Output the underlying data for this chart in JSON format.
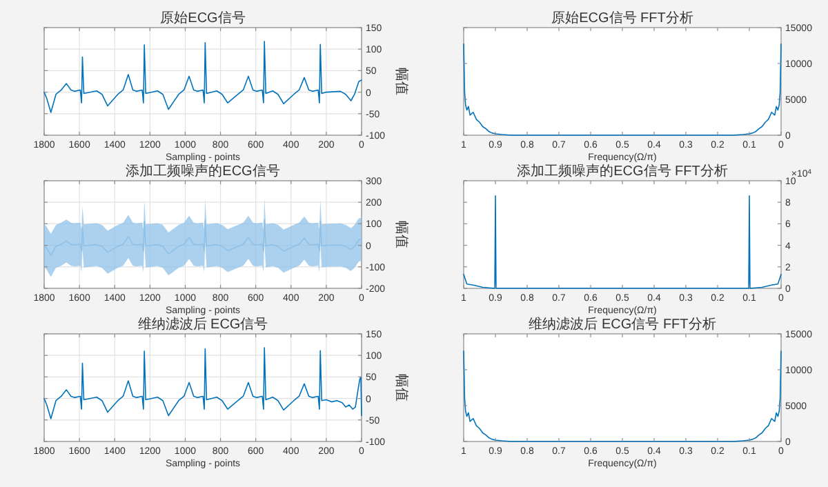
{
  "chart_data": [
    {
      "type": "line",
      "title": "原始ECG信号",
      "xlabel": "Sampling - points",
      "ylabel": "幅值",
      "xlim": [
        1800,
        0
      ],
      "xticks": [
        0,
        200,
        400,
        600,
        800,
        1000,
        1200,
        1400,
        1600,
        1800
      ],
      "ylim": [
        -100,
        150
      ],
      "yticks": [
        -100,
        -50,
        0,
        50,
        100,
        150
      ],
      "grid": true,
      "series": [
        {
          "color": "#0072bd",
          "x": [
            0,
            15,
            40,
            60,
            90,
            120,
            200,
            226,
            234,
            239,
            246,
            279,
            299,
            325,
            354,
            384,
            442,
            474,
            504,
            543,
            551,
            556,
            563,
            596,
            616,
            642,
            671,
            701,
            759,
            791,
            821,
            879,
            887,
            892,
            899,
            932,
            952,
            978,
            1007,
            1037,
            1095,
            1127,
            1157,
            1224,
            1232,
            1237,
            1244,
            1277,
            1297,
            1323,
            1352,
            1382,
            1440,
            1472,
            1502,
            1575,
            1583,
            1588,
            1595,
            1628,
            1648,
            1674,
            1703,
            1733,
            1762,
            1785,
            1800
          ],
          "values": [
            28,
            25,
            -5,
            -20,
            -5,
            2,
            0,
            -3,
            111,
            -25,
            5,
            2,
            5,
            34,
            5,
            -5,
            -27,
            -5,
            3,
            -3,
            118,
            -25,
            5,
            2,
            5,
            37,
            5,
            -5,
            -25,
            -5,
            3,
            -3,
            115,
            -25,
            5,
            2,
            5,
            37,
            5,
            -5,
            -40,
            -5,
            3,
            -3,
            110,
            -25,
            5,
            2,
            5,
            41,
            5,
            -5,
            -32,
            -5,
            3,
            -3,
            82,
            -25,
            5,
            2,
            5,
            20,
            5,
            -5,
            -47,
            -15,
            0
          ]
        }
      ]
    },
    {
      "type": "line",
      "title": "原始ECG信号 FFT分析",
      "xlabel": "Frequency(Ω/π)",
      "xlim": [
        1,
        0
      ],
      "xticks": [
        0,
        0.1,
        0.2,
        0.3,
        0.4,
        0.5,
        0.6,
        0.7,
        0.8,
        0.9,
        1
      ],
      "ylim": [
        0,
        15000
      ],
      "yticks": [
        0,
        5000,
        10000,
        15000
      ],
      "series": [
        {
          "color": "#0072bd",
          "x": [
            0,
            0.003,
            0.006,
            0.01,
            0.015,
            0.02,
            0.03,
            0.04,
            0.05,
            0.06,
            0.07,
            0.08,
            0.09,
            0.1,
            0.12,
            0.15,
            0.5,
            0.85,
            0.88,
            0.9,
            0.91,
            0.92,
            0.93,
            0.94,
            0.95,
            0.96,
            0.97,
            0.98,
            0.985,
            0.99,
            0.994,
            0.997,
            1
          ],
          "values": [
            12700,
            6000,
            4200,
            3500,
            4000,
            2800,
            3200,
            2200,
            1800,
            1200,
            900,
            500,
            300,
            200,
            100,
            0,
            0,
            0,
            100,
            200,
            300,
            500,
            900,
            1200,
            1800,
            2200,
            3200,
            2800,
            4000,
            3500,
            4200,
            6000,
            12700
          ]
        }
      ]
    },
    {
      "type": "line",
      "title": "添加工频噪声的ECG信号",
      "xlabel": "Sampling - points",
      "ylabel": "幅值",
      "xlim": [
        1800,
        0
      ],
      "xticks": [
        0,
        200,
        400,
        600,
        800,
        1000,
        1200,
        1400,
        1600,
        1800
      ],
      "ylim": [
        -200,
        300
      ],
      "yticks": [
        -200,
        -100,
        0,
        100,
        200,
        300
      ],
      "grid": true,
      "series": [
        {
          "color": "#8fc1e8",
          "x": [
            0,
            15,
            40,
            60,
            90,
            120,
            200,
            226,
            234,
            239,
            246,
            279,
            299,
            325,
            354,
            384,
            442,
            474,
            504,
            543,
            551,
            556,
            563,
            596,
            616,
            642,
            671,
            701,
            759,
            791,
            821,
            879,
            887,
            892,
            899,
            932,
            952,
            978,
            1007,
            1037,
            1095,
            1127,
            1157,
            1224,
            1232,
            1237,
            1244,
            1277,
            1297,
            1323,
            1352,
            1382,
            1440,
            1472,
            1502,
            1575,
            1583,
            1588,
            1595,
            1628,
            1648,
            1674,
            1703,
            1733,
            1762,
            1785,
            1800
          ],
          "values": [
            28,
            25,
            -5,
            -20,
            -5,
            2,
            0,
            -3,
            111,
            -25,
            5,
            2,
            5,
            34,
            5,
            -5,
            -27,
            -5,
            3,
            -3,
            118,
            -25,
            5,
            2,
            5,
            37,
            5,
            -5,
            -25,
            -5,
            3,
            -3,
            115,
            -25,
            5,
            2,
            5,
            37,
            5,
            -5,
            -40,
            -5,
            3,
            -3,
            110,
            -25,
            5,
            2,
            5,
            41,
            5,
            -5,
            -32,
            -5,
            3,
            -3,
            82,
            -25,
            5,
            2,
            5,
            20,
            5,
            -5,
            -47,
            -15,
            0
          ],
          "lower": [
            -72,
            -75,
            -105,
            -120,
            -105,
            -98,
            -100,
            -103,
            11,
            -125,
            -95,
            -98,
            -95,
            -66,
            -95,
            -105,
            -127,
            -105,
            -97,
            -103,
            18,
            -125,
            -95,
            -98,
            -95,
            -63,
            -95,
            -105,
            -125,
            -105,
            -97,
            -103,
            15,
            -125,
            -95,
            -98,
            -95,
            -63,
            -95,
            -105,
            -140,
            -105,
            -97,
            -103,
            10,
            -125,
            -95,
            -98,
            -95,
            -59,
            -95,
            -105,
            -132,
            -105,
            -97,
            -103,
            -18,
            -125,
            -95,
            -98,
            -95,
            -80,
            -95,
            -105,
            -147,
            -115,
            -100
          ],
          "upper": [
            128,
            125,
            95,
            80,
            95,
            102,
            100,
            97,
            211,
            75,
            105,
            102,
            105,
            134,
            105,
            95,
            73,
            95,
            103,
            97,
            218,
            75,
            105,
            102,
            105,
            137,
            105,
            95,
            75,
            95,
            103,
            97,
            215,
            75,
            105,
            102,
            105,
            137,
            105,
            95,
            60,
            95,
            103,
            97,
            210,
            75,
            105,
            102,
            105,
            141,
            105,
            95,
            68,
            95,
            103,
            97,
            182,
            75,
            105,
            102,
            105,
            120,
            105,
            95,
            53,
            85,
            100
          ]
        }
      ]
    },
    {
      "type": "line",
      "title": "添加工频噪声的ECG信号 FFT分析",
      "xlabel": "Frequency(Ω/π)",
      "xlim": [
        1,
        0
      ],
      "xticks": [
        0,
        0.1,
        0.2,
        0.3,
        0.4,
        0.5,
        0.6,
        0.7,
        0.8,
        0.9,
        1
      ],
      "ylim": [
        0,
        10
      ],
      "yticks": [
        0,
        2,
        4,
        6,
        8,
        10
      ],
      "annotations": [
        "×10$^{4}$"
      ],
      "series": [
        {
          "color": "#0072bd",
          "x": [
            0,
            0.01,
            0.03,
            0.06,
            0.098,
            0.1,
            0.102,
            0.2,
            0.5,
            0.8,
            0.898,
            0.9,
            0.902,
            0.94,
            0.97,
            0.99,
            1
          ],
          "values": [
            1.3,
            0.4,
            0.3,
            0.1,
            0,
            8.6,
            0,
            0,
            0,
            0,
            0,
            8.6,
            0,
            0.1,
            0.3,
            0.4,
            1.3
          ]
        }
      ]
    },
    {
      "type": "line",
      "title": "维纳滤波后 ECG信号",
      "xlabel": "Sampling - points",
      "ylabel": "幅值",
      "xlim": [
        1800,
        0
      ],
      "xticks": [
        0,
        200,
        400,
        600,
        800,
        1000,
        1200,
        1400,
        1600,
        1800
      ],
      "ylim": [
        -100,
        150
      ],
      "yticks": [
        -100,
        -50,
        0,
        50,
        100,
        150
      ],
      "grid": true,
      "series": [
        {
          "color": "#0072bd",
          "x": [
            0,
            4,
            10,
            20,
            35,
            50,
            70,
            90,
            110,
            140,
            170,
            200,
            226,
            234,
            239,
            246,
            279,
            299,
            325,
            354,
            384,
            442,
            474,
            504,
            543,
            551,
            556,
            563,
            596,
            616,
            642,
            671,
            701,
            759,
            791,
            821,
            879,
            887,
            892,
            899,
            932,
            952,
            978,
            1007,
            1037,
            1095,
            1127,
            1157,
            1224,
            1232,
            1237,
            1244,
            1277,
            1297,
            1323,
            1352,
            1382,
            1440,
            1472,
            1502,
            1575,
            1583,
            1588,
            1595,
            1628,
            1648,
            1674,
            1703,
            1733,
            1762,
            1785,
            1800
          ],
          "values": [
            -40,
            50,
            45,
            20,
            -20,
            -25,
            -15,
            -20,
            -10,
            -5,
            -8,
            -3,
            -5,
            111,
            -25,
            5,
            2,
            5,
            34,
            5,
            -5,
            -27,
            -5,
            3,
            -3,
            118,
            -25,
            5,
            2,
            5,
            37,
            5,
            -5,
            -25,
            -5,
            3,
            -3,
            115,
            -25,
            5,
            2,
            5,
            37,
            5,
            -5,
            -40,
            -5,
            3,
            -3,
            110,
            -25,
            5,
            2,
            5,
            41,
            5,
            -5,
            -32,
            -5,
            3,
            -3,
            82,
            -25,
            5,
            2,
            5,
            20,
            5,
            -5,
            -47,
            -15,
            0
          ]
        }
      ]
    },
    {
      "type": "line",
      "title": "维纳滤波后 ECG信号 FFT分析",
      "xlabel": "Frequency(Ω/π)",
      "xlim": [
        1,
        0
      ],
      "xticks": [
        0,
        0.1,
        0.2,
        0.3,
        0.4,
        0.5,
        0.6,
        0.7,
        0.8,
        0.9,
        1
      ],
      "ylim": [
        0,
        15000
      ],
      "yticks": [
        0,
        5000,
        10000,
        15000
      ],
      "series": [
        {
          "color": "#0072bd",
          "x": [
            0,
            0.003,
            0.006,
            0.01,
            0.015,
            0.02,
            0.03,
            0.04,
            0.05,
            0.06,
            0.07,
            0.08,
            0.09,
            0.1,
            0.12,
            0.15,
            0.5,
            0.85,
            0.88,
            0.9,
            0.91,
            0.92,
            0.93,
            0.94,
            0.95,
            0.96,
            0.97,
            0.98,
            0.985,
            0.99,
            0.994,
            0.997,
            1
          ],
          "values": [
            12600,
            6000,
            4200,
            3500,
            4000,
            2800,
            3200,
            2200,
            1800,
            1200,
            900,
            500,
            300,
            200,
            100,
            0,
            0,
            0,
            100,
            200,
            300,
            500,
            900,
            1200,
            1800,
            2200,
            3200,
            2800,
            4000,
            3500,
            4200,
            6000,
            12600
          ]
        }
      ]
    }
  ]
}
